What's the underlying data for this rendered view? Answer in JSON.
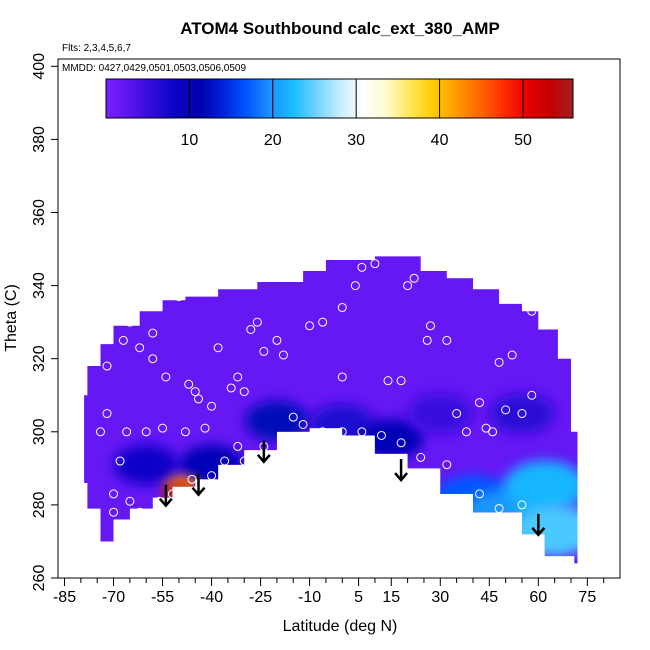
{
  "chart_data": {
    "type": "heatmap",
    "title": "ATOM4 Southbound calc_ext_380_AMP",
    "annotations": [
      "Flts: 2,3,4,5,6,7",
      "MMDD: 0427,0429,0501,0503,0506,0509"
    ],
    "xlabel": "Latitude (deg N)",
    "ylabel": "Theta (C)",
    "xlim": [
      -87,
      85
    ],
    "ylim": [
      260,
      402
    ],
    "x_ticks_major": [
      -85,
      -70,
      -55,
      -40,
      -25,
      -10,
      5,
      15,
      30,
      45,
      60,
      75
    ],
    "x_ticks_minor": [
      -80,
      -75,
      -65,
      -60,
      -50,
      -45,
      -35,
      -30,
      -20,
      -15,
      -5,
      0,
      10,
      20,
      25,
      35,
      40,
      50,
      55,
      65,
      70,
      80
    ],
    "y_ticks": [
      260,
      280,
      300,
      320,
      340,
      360,
      380,
      400
    ],
    "colorbar": {
      "range": [
        0,
        56
      ],
      "ticks": [
        10,
        20,
        30,
        40,
        50
      ],
      "colors": [
        "#7d1fff",
        "#5b14ef",
        "#2f0bd8",
        "#0a05c5",
        "#0000aa",
        "#0022d8",
        "#0055ff",
        "#1e90ff",
        "#17bcff",
        "#6fd3ff",
        "#c4ecff",
        "#ffffff",
        "#fffbcc",
        "#ffe85a",
        "#ffcc00",
        "#ff9a00",
        "#ff6800",
        "#ff2e00",
        "#e80000",
        "#c40000",
        "#a22020"
      ]
    },
    "field": {
      "background_value": 2,
      "top_boundary": [
        [
          -78,
          318
        ],
        [
          -74,
          324
        ],
        [
          -70,
          329
        ],
        [
          -62,
          333
        ],
        [
          -55,
          336
        ],
        [
          -48,
          337
        ],
        [
          -38,
          339
        ],
        [
          -26,
          341
        ],
        [
          -12,
          344
        ],
        [
          -5,
          347
        ],
        [
          10,
          348
        ],
        [
          24,
          344
        ],
        [
          32,
          342
        ],
        [
          40,
          339
        ],
        [
          48,
          335
        ],
        [
          55,
          333
        ],
        [
          60,
          328
        ],
        [
          66,
          320
        ],
        [
          70,
          300
        ]
      ],
      "bottom_boundary": [
        [
          -78,
          318
        ],
        [
          -79,
          310
        ],
        [
          -78,
          286
        ],
        [
          -74,
          279
        ],
        [
          -70,
          270
        ],
        [
          -65,
          276
        ],
        [
          -58,
          279
        ],
        [
          -52,
          282
        ],
        [
          -45,
          285
        ],
        [
          -38,
          287
        ],
        [
          -30,
          291
        ],
        [
          -20,
          295
        ],
        [
          -10,
          300
        ],
        [
          0,
          301
        ],
        [
          10,
          299
        ],
        [
          20,
          294
        ],
        [
          30,
          290
        ],
        [
          40,
          283
        ],
        [
          48,
          278
        ],
        [
          55,
          278
        ],
        [
          62,
          272
        ],
        [
          71,
          266
        ],
        [
          72,
          264
        ]
      ],
      "features": [
        {
          "lat": -20,
          "theta": 303,
          "value": 12
        },
        {
          "lat": 0,
          "theta": 302,
          "value": 7
        },
        {
          "lat": -40,
          "theta": 291,
          "value": 10
        },
        {
          "lat": -60,
          "theta": 291,
          "value": 8
        },
        {
          "lat": -49,
          "theta": 285,
          "value": 42
        },
        {
          "lat": -50,
          "theta": 283,
          "value": 54
        },
        {
          "lat": 40,
          "theta": 281,
          "value": 17
        },
        {
          "lat": 50,
          "theta": 277,
          "value": 20
        },
        {
          "lat": 62,
          "theta": 285,
          "value": 22
        },
        {
          "lat": 65,
          "theta": 273,
          "value": 24
        },
        {
          "lat": 15,
          "theta": 298,
          "value": 10
        },
        {
          "lat": 30,
          "theta": 305,
          "value": 5
        },
        {
          "lat": 55,
          "theta": 305,
          "value": 6
        }
      ]
    },
    "sample_points": [
      [
        -70,
        331
      ],
      [
        -72,
        318
      ],
      [
        -65,
        330
      ],
      [
        -67,
        325
      ],
      [
        -62,
        323
      ],
      [
        -58,
        327
      ],
      [
        -58,
        320
      ],
      [
        -54,
        315
      ],
      [
        -50,
        337
      ],
      [
        -47,
        313
      ],
      [
        -45,
        311
      ],
      [
        -44,
        309
      ],
      [
        -40,
        307
      ],
      [
        -38,
        323
      ],
      [
        -34,
        312
      ],
      [
        -32,
        315
      ],
      [
        -30,
        311
      ],
      [
        -28,
        328
      ],
      [
        -26,
        330
      ],
      [
        -24,
        322
      ],
      [
        -20,
        325
      ],
      [
        -18,
        321
      ],
      [
        -15,
        304
      ],
      [
        -10,
        329
      ],
      [
        -6,
        330
      ],
      [
        0,
        315
      ],
      [
        0,
        334
      ],
      [
        4,
        340
      ],
      [
        6,
        345
      ],
      [
        10,
        346
      ],
      [
        14,
        314
      ],
      [
        18,
        314
      ],
      [
        20,
        340
      ],
      [
        22,
        342
      ],
      [
        26,
        325
      ],
      [
        27,
        329
      ],
      [
        32,
        325
      ],
      [
        35,
        305
      ],
      [
        38,
        300
      ],
      [
        42,
        308
      ],
      [
        44,
        301
      ],
      [
        48,
        319
      ],
      [
        52,
        321
      ],
      [
        55,
        305
      ],
      [
        58,
        310
      ],
      [
        58,
        333
      ],
      [
        46,
        300
      ],
      [
        50,
        306
      ],
      [
        -72,
        305
      ],
      [
        -74,
        300
      ],
      [
        -66,
        300
      ],
      [
        -60,
        300
      ],
      [
        -55,
        301
      ],
      [
        -48,
        300
      ],
      [
        -42,
        301
      ],
      [
        -36,
        292
      ],
      [
        -30,
        292
      ],
      [
        -68,
        292
      ],
      [
        -70,
        283
      ],
      [
        -65,
        281
      ],
      [
        -62,
        278
      ],
      [
        -56,
        281
      ],
      [
        -52,
        283
      ],
      [
        -46,
        287
      ],
      [
        -40,
        288
      ],
      [
        -32,
        296
      ],
      [
        -24,
        296
      ],
      [
        -12,
        302
      ],
      [
        -6,
        300
      ],
      [
        0,
        300
      ],
      [
        6,
        300
      ],
      [
        12,
        299
      ],
      [
        18,
        297
      ],
      [
        24,
        293
      ],
      [
        32,
        291
      ],
      [
        42,
        283
      ],
      [
        48,
        279
      ],
      [
        55,
        280
      ],
      [
        -70,
        278
      ]
    ],
    "arrows": [
      [
        -54,
        285
      ],
      [
        -44,
        288
      ],
      [
        -24,
        297
      ],
      [
        18,
        292
      ],
      [
        60,
        277
      ]
    ]
  }
}
